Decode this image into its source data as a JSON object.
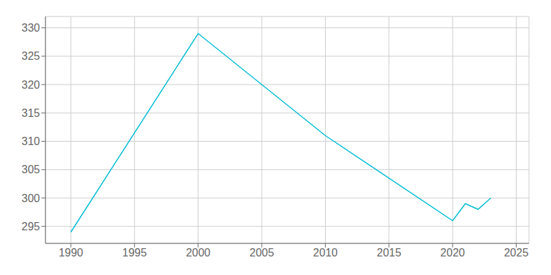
{
  "chart_data": {
    "type": "line",
    "x": [
      1990,
      2000,
      2010,
      2020,
      2021,
      2022,
      2023
    ],
    "values": [
      294,
      329,
      311,
      296,
      299,
      298,
      300
    ],
    "color": "#00bcd4",
    "xlim": [
      1988,
      2026
    ],
    "ylim": [
      292,
      332
    ],
    "xticks": [
      1990,
      1995,
      2000,
      2005,
      2010,
      2015,
      2020,
      2025
    ],
    "yticks": [
      295,
      300,
      305,
      310,
      315,
      320,
      325,
      330
    ],
    "grid": true
  }
}
